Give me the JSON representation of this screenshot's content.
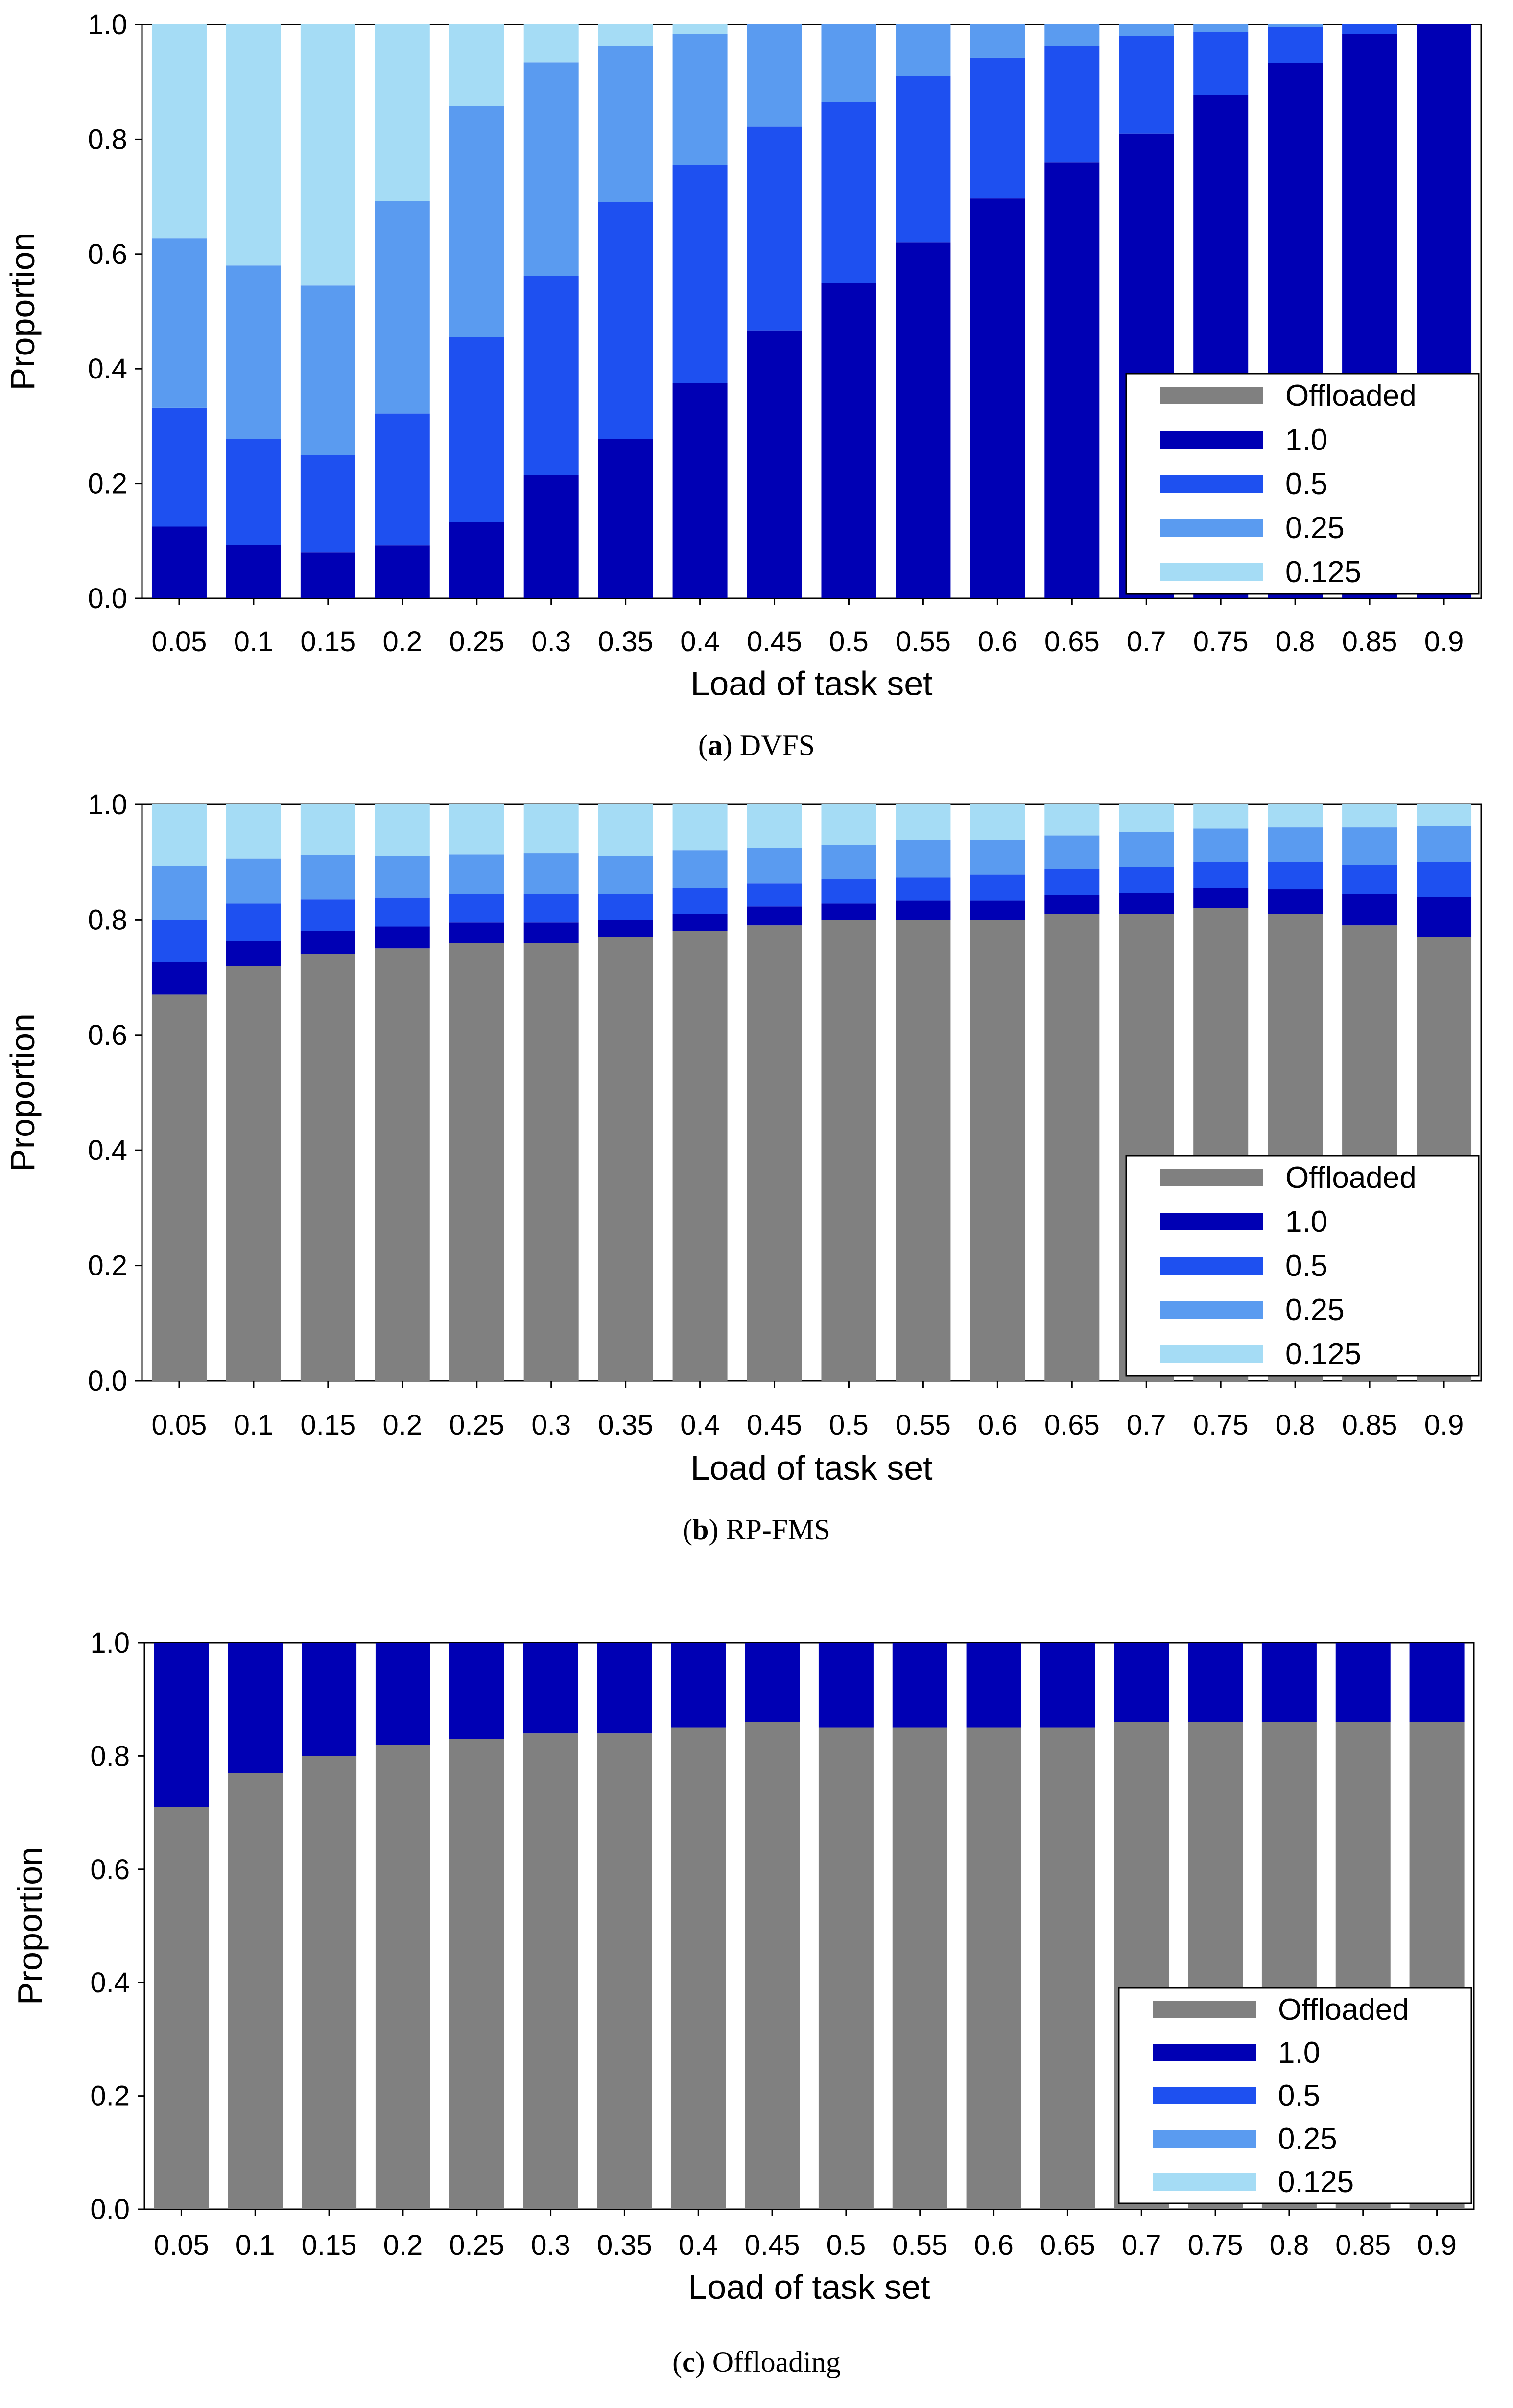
{
  "colors": {
    "Offloaded": "#808080",
    "1.0": "#0000b4",
    "0.5": "#1e50f0",
    "0.25": "#5a9bf0",
    "0.125": "#a5dcf5"
  },
  "chart_data": [
    {
      "id": "a",
      "type": "bar",
      "stacked": true,
      "caption_letter": "a",
      "caption_text": "DVFS",
      "xlabel": "Load of task set",
      "ylabel": "Proportion",
      "ylim": [
        0,
        1
      ],
      "yticks": [
        "0.0",
        "0.2",
        "0.4",
        "0.6",
        "0.8",
        "1.0"
      ],
      "legend_position": "bottom-right",
      "legend": [
        "Offloaded",
        "1.0",
        "0.5",
        "0.25",
        "0.125"
      ],
      "categories": [
        "0.05",
        "0.1",
        "0.15",
        "0.2",
        "0.25",
        "0.3",
        "0.35",
        "0.4",
        "0.45",
        "0.5",
        "0.55",
        "0.6",
        "0.65",
        "0.7",
        "0.75",
        "0.8",
        "0.85",
        "0.9"
      ],
      "series": [
        {
          "name": "Offloaded",
          "values": [
            0,
            0,
            0,
            0,
            0,
            0,
            0,
            0,
            0,
            0,
            0,
            0,
            0,
            0,
            0,
            0,
            0,
            0
          ]
        },
        {
          "name": "1.0",
          "values": [
            0.125,
            0.093,
            0.08,
            0.092,
            0.133,
            0.215,
            0.278,
            0.375,
            0.467,
            0.55,
            0.62,
            0.697,
            0.76,
            0.81,
            0.877,
            0.933,
            0.983,
            1.0
          ]
        },
        {
          "name": "0.5",
          "values": [
            0.207,
            0.185,
            0.17,
            0.23,
            0.322,
            0.347,
            0.413,
            0.38,
            0.355,
            0.315,
            0.29,
            0.245,
            0.203,
            0.17,
            0.11,
            0.062,
            0.017,
            0
          ]
        },
        {
          "name": "0.25",
          "values": [
            0.295,
            0.302,
            0.295,
            0.37,
            0.403,
            0.372,
            0.272,
            0.228,
            0.178,
            0.135,
            0.09,
            0.058,
            0.037,
            0.02,
            0.013,
            0.005,
            0,
            0
          ]
        },
        {
          "name": "0.125",
          "values": [
            0.373,
            0.42,
            0.455,
            0.308,
            0.142,
            0.066,
            0.037,
            0.017,
            0,
            0,
            0,
            0,
            0,
            0,
            0,
            0,
            0,
            0
          ]
        }
      ]
    },
    {
      "id": "b",
      "type": "bar",
      "stacked": true,
      "caption_letter": "b",
      "caption_text": "RP-FMS",
      "xlabel": "Load of task set",
      "ylabel": "Proportion",
      "ylim": [
        0,
        1
      ],
      "yticks": [
        "0.0",
        "0.2",
        "0.4",
        "0.6",
        "0.8",
        "1.0"
      ],
      "legend_position": "bottom-right",
      "legend": [
        "Offloaded",
        "1.0",
        "0.5",
        "0.25",
        "0.125"
      ],
      "categories": [
        "0.05",
        "0.1",
        "0.15",
        "0.2",
        "0.25",
        "0.3",
        "0.35",
        "0.4",
        "0.45",
        "0.5",
        "0.55",
        "0.6",
        "0.65",
        "0.7",
        "0.75",
        "0.8",
        "0.85",
        "0.9"
      ],
      "series": [
        {
          "name": "Offloaded",
          "values": [
            0.67,
            0.72,
            0.74,
            0.75,
            0.76,
            0.76,
            0.77,
            0.78,
            0.79,
            0.8,
            0.8,
            0.8,
            0.81,
            0.81,
            0.82,
            0.81,
            0.79,
            0.77
          ]
        },
        {
          "name": "1.0",
          "values": [
            0.057,
            0.043,
            0.04,
            0.038,
            0.035,
            0.035,
            0.03,
            0.03,
            0.033,
            0.028,
            0.033,
            0.033,
            0.033,
            0.037,
            0.035,
            0.043,
            0.055,
            0.07
          ]
        },
        {
          "name": "0.5",
          "values": [
            0.073,
            0.065,
            0.055,
            0.05,
            0.05,
            0.05,
            0.045,
            0.045,
            0.04,
            0.042,
            0.04,
            0.045,
            0.045,
            0.045,
            0.045,
            0.047,
            0.05,
            0.06
          ]
        },
        {
          "name": "0.25",
          "values": [
            0.093,
            0.078,
            0.077,
            0.072,
            0.068,
            0.07,
            0.065,
            0.065,
            0.062,
            0.06,
            0.065,
            0.06,
            0.058,
            0.06,
            0.058,
            0.06,
            0.065,
            0.063
          ]
        },
        {
          "name": "0.125",
          "values": [
            0.107,
            0.094,
            0.088,
            0.09,
            0.087,
            0.085,
            0.09,
            0.08,
            0.075,
            0.07,
            0.062,
            0.062,
            0.054,
            0.048,
            0.042,
            0.04,
            0.04,
            0.037
          ]
        }
      ]
    },
    {
      "id": "c",
      "type": "bar",
      "stacked": true,
      "caption_letter": "c",
      "caption_text": "Offloading",
      "xlabel": "Load of task set",
      "ylabel": "Proportion",
      "ylim": [
        0,
        1
      ],
      "yticks": [
        "0.0",
        "0.2",
        "0.4",
        "0.6",
        "0.8",
        "1.0"
      ],
      "legend_position": "bottom-right",
      "legend": [
        "Offloaded",
        "1.0",
        "0.5",
        "0.25",
        "0.125"
      ],
      "categories": [
        "0.05",
        "0.1",
        "0.15",
        "0.2",
        "0.25",
        "0.3",
        "0.35",
        "0.4",
        "0.45",
        "0.5",
        "0.55",
        "0.6",
        "0.65",
        "0.7",
        "0.75",
        "0.8",
        "0.85",
        "0.9"
      ],
      "series": [
        {
          "name": "Offloaded",
          "values": [
            0.71,
            0.77,
            0.8,
            0.82,
            0.83,
            0.84,
            0.84,
            0.85,
            0.86,
            0.85,
            0.85,
            0.85,
            0.85,
            0.86,
            0.86,
            0.86,
            0.86,
            0.86
          ]
        },
        {
          "name": "1.0",
          "values": [
            0.29,
            0.23,
            0.2,
            0.18,
            0.17,
            0.16,
            0.16,
            0.15,
            0.14,
            0.15,
            0.15,
            0.15,
            0.15,
            0.14,
            0.14,
            0.14,
            0.14,
            0.14
          ]
        },
        {
          "name": "0.5",
          "values": [
            0,
            0,
            0,
            0,
            0,
            0,
            0,
            0,
            0,
            0,
            0,
            0,
            0,
            0,
            0,
            0,
            0,
            0
          ]
        },
        {
          "name": "0.25",
          "values": [
            0,
            0,
            0,
            0,
            0,
            0,
            0,
            0,
            0,
            0,
            0,
            0,
            0,
            0,
            0,
            0,
            0,
            0
          ]
        },
        {
          "name": "0.125",
          "values": [
            0,
            0,
            0,
            0,
            0,
            0,
            0,
            0,
            0,
            0,
            0,
            0,
            0,
            0,
            0,
            0,
            0,
            0
          ]
        }
      ]
    }
  ]
}
